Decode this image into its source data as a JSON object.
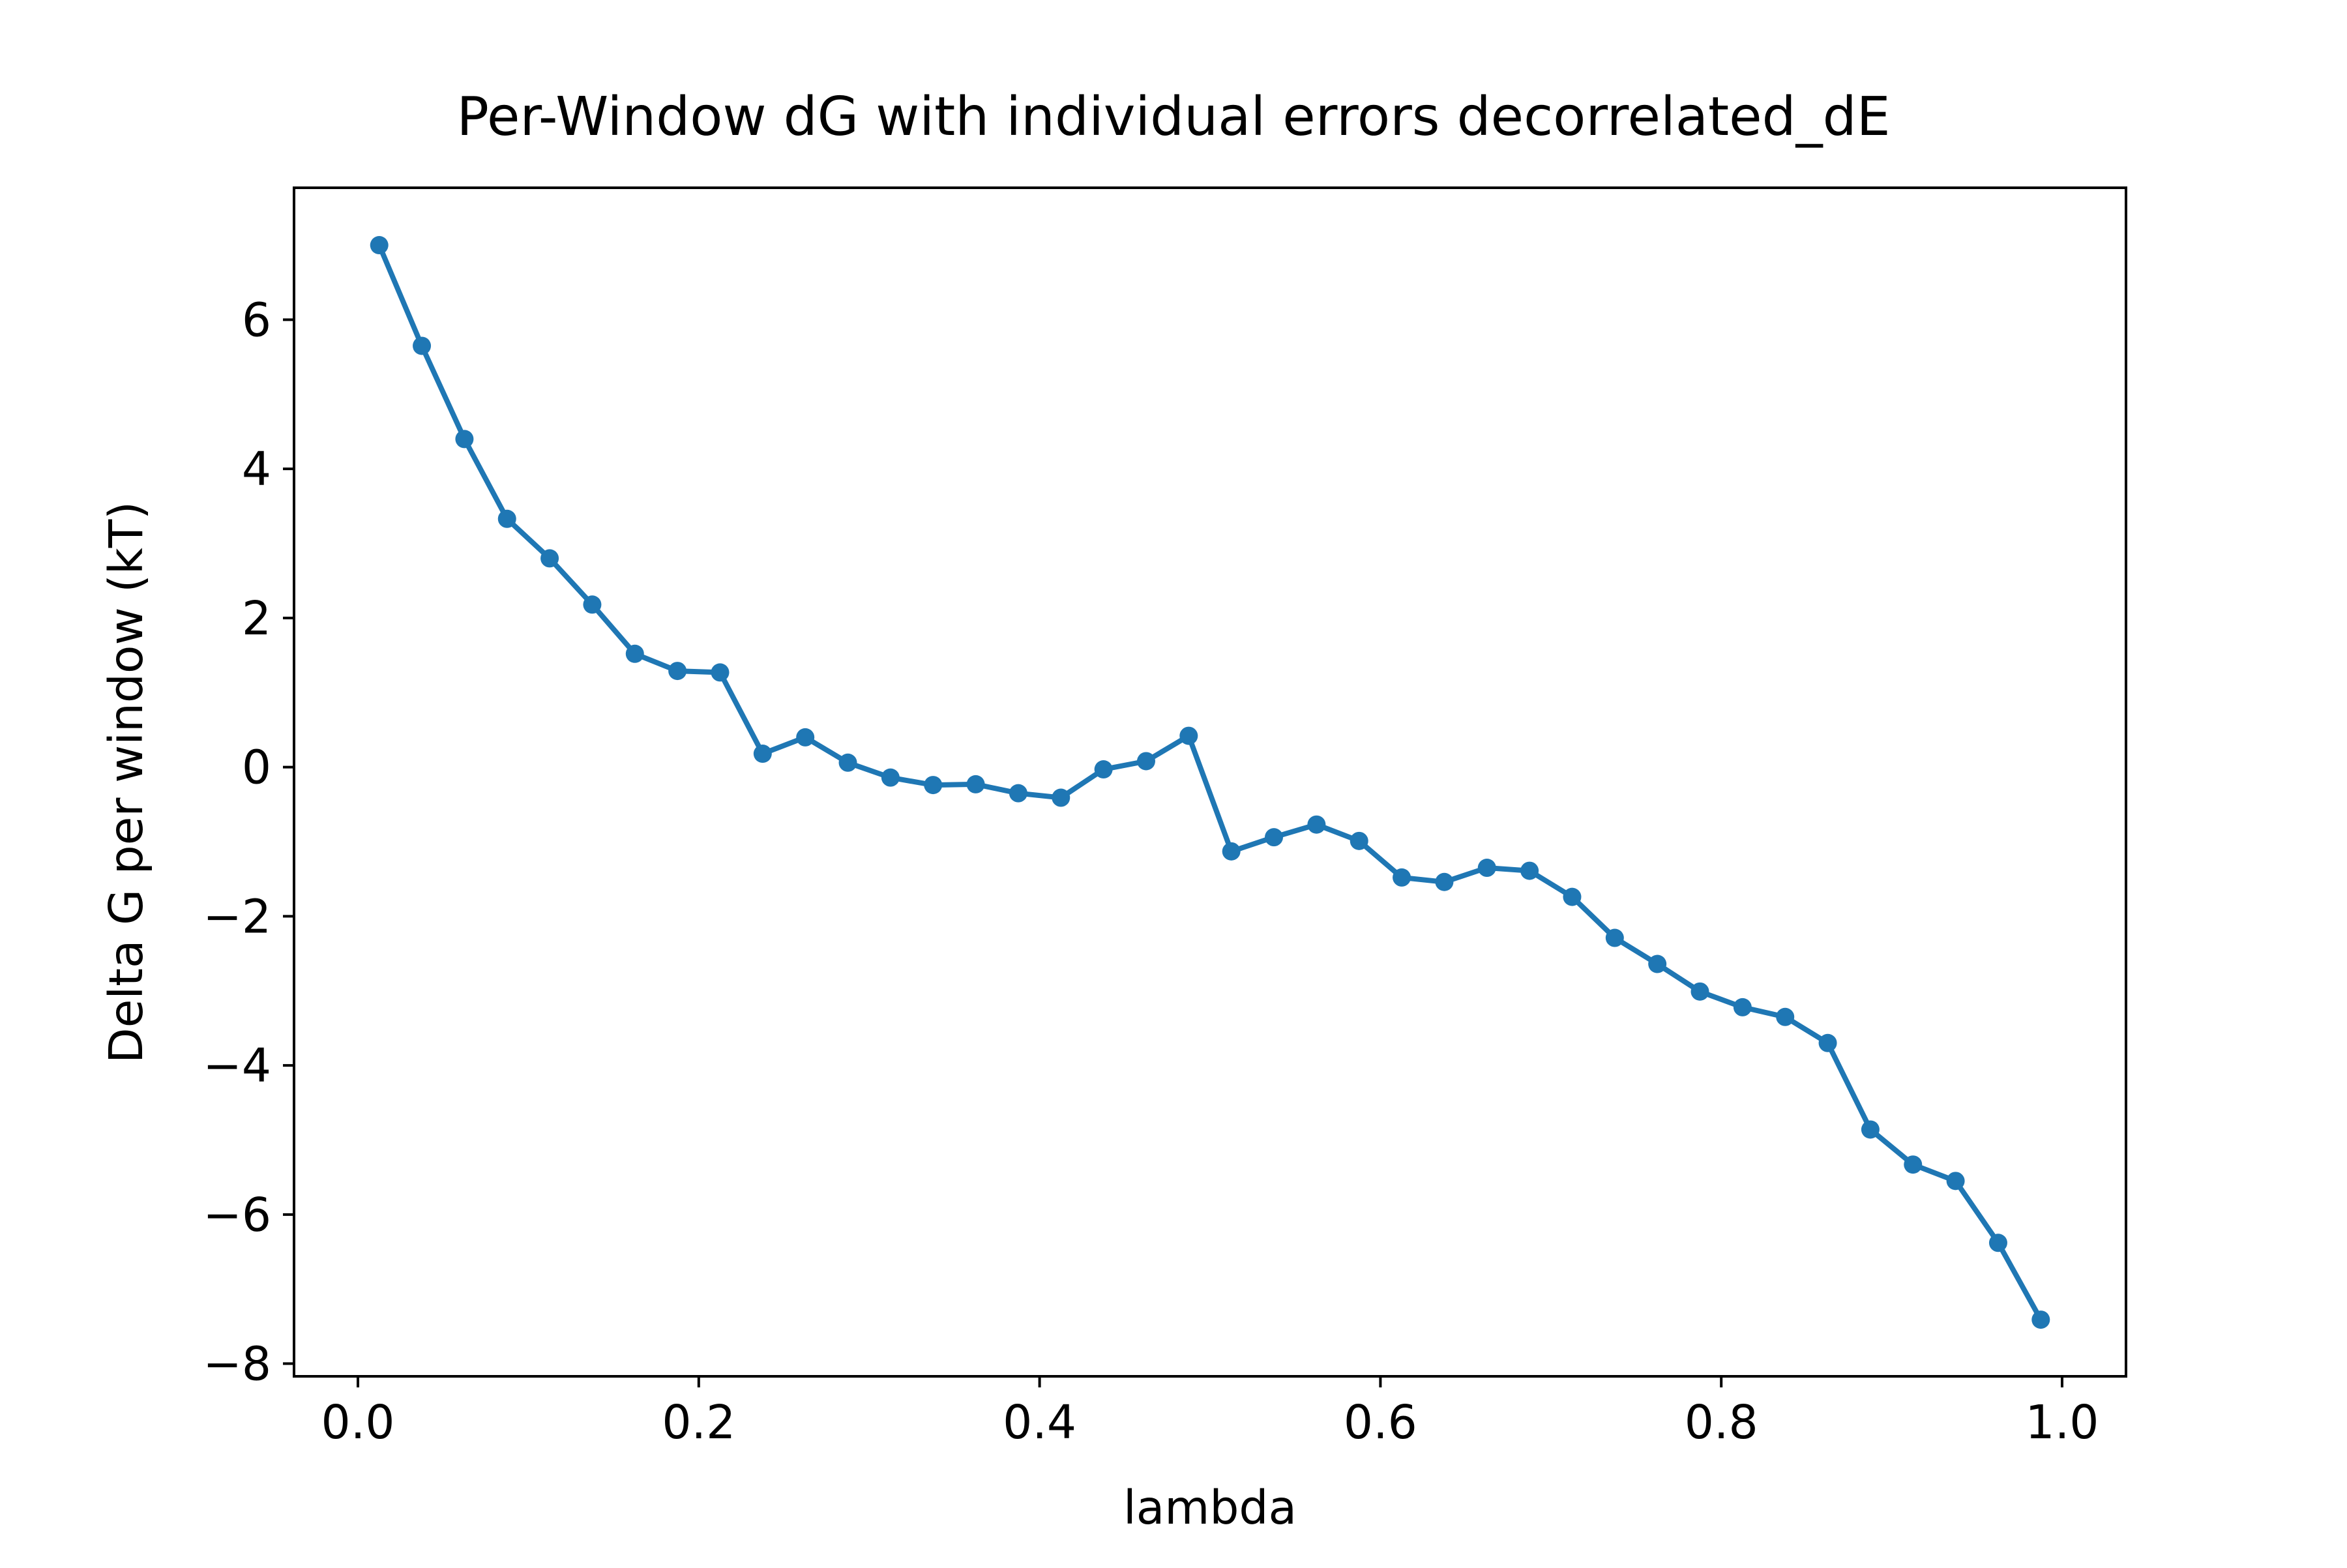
{
  "chart_data": {
    "type": "line",
    "title": "Per-Window dG with individual errors decorrelated_dE",
    "xlabel": "lambda",
    "ylabel": "Delta G per window (kT)",
    "xlim": [
      -0.0375,
      1.0375
    ],
    "ylim": [
      -8.17,
      7.77
    ],
    "xticks": [
      0.0,
      0.2,
      0.4,
      0.6,
      0.8,
      1.0
    ],
    "xtick_labels": [
      "0.0",
      "0.2",
      "0.4",
      "0.6",
      "0.8",
      "1.0"
    ],
    "yticks": [
      6,
      4,
      2,
      0,
      -2,
      -4,
      -6,
      -8
    ],
    "ytick_labels": [
      "6",
      "4",
      "2",
      "0",
      "−2",
      "−4",
      "−6",
      "−8"
    ],
    "grid": false,
    "legend": "none",
    "color": "#1f77b4",
    "marker": "circle",
    "series": [
      {
        "x": [
          0.0125,
          0.0375,
          0.0625,
          0.0875,
          0.1125,
          0.1375,
          0.1625,
          0.1875,
          0.2125,
          0.2375,
          0.2625,
          0.2875,
          0.3125,
          0.3375,
          0.3625,
          0.3875,
          0.4125,
          0.4375,
          0.4625,
          0.4875,
          0.5125,
          0.5375,
          0.5625,
          0.5875,
          0.6125,
          0.6375,
          0.6625,
          0.6875,
          0.7125,
          0.7375,
          0.7625,
          0.7875,
          0.8125,
          0.8375,
          0.8625,
          0.8875,
          0.9125,
          0.9375,
          0.9625,
          0.9875
        ],
        "y": [
          7.0,
          5.65,
          4.4,
          3.33,
          2.8,
          2.18,
          1.52,
          1.29,
          1.27,
          0.18,
          0.4,
          0.06,
          -0.14,
          -0.24,
          -0.23,
          -0.35,
          -0.41,
          -0.03,
          0.08,
          0.42,
          -1.13,
          -0.94,
          -0.77,
          -0.99,
          -1.48,
          -1.54,
          -1.35,
          -1.39,
          -1.74,
          -2.29,
          -2.64,
          -3.01,
          -3.22,
          -3.35,
          -3.7,
          -4.86,
          -5.33,
          -5.55,
          -6.38,
          -7.41
        ]
      }
    ]
  }
}
